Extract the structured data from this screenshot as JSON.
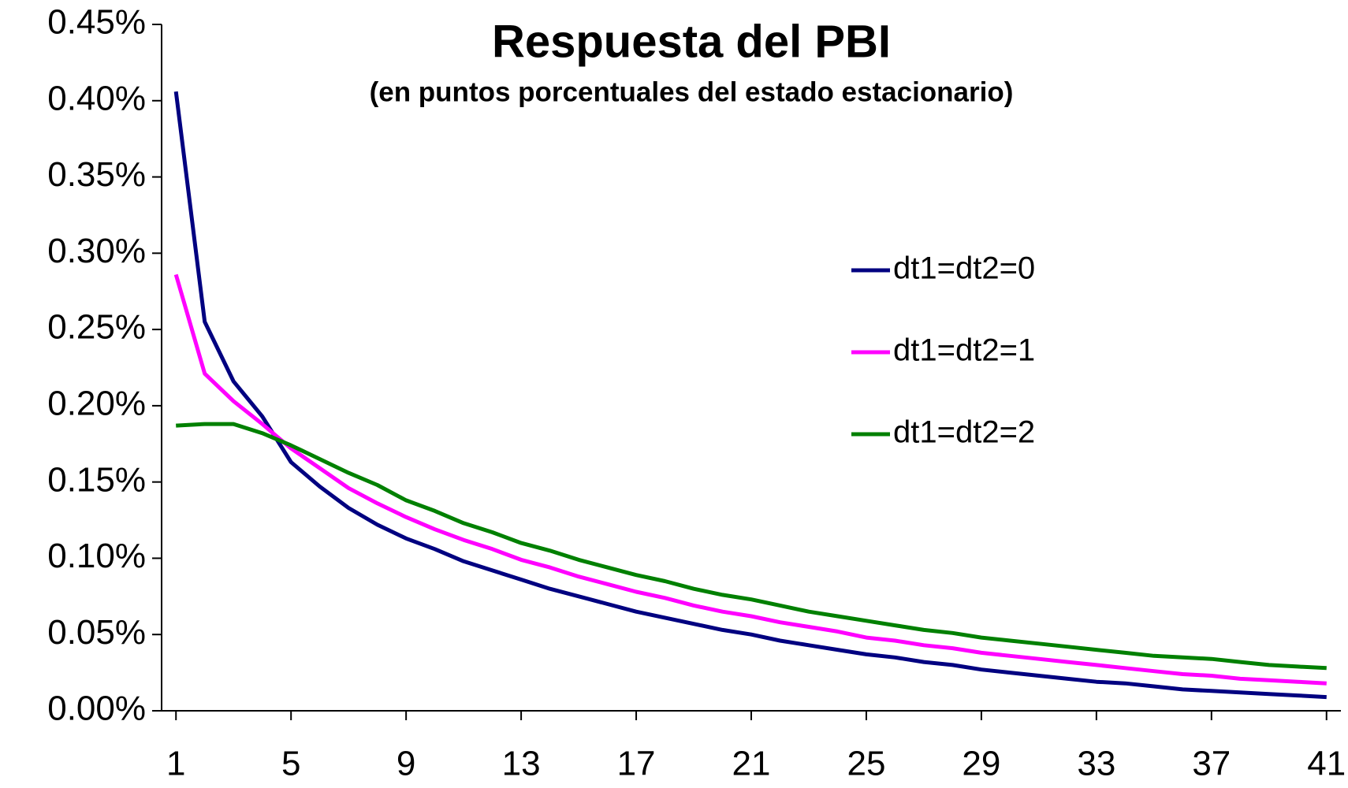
{
  "chart_data": {
    "type": "line",
    "title": "Respuesta del PBI",
    "subtitle": "(en puntos porcentuales del estado estacionario)",
    "x": [
      1,
      2,
      3,
      4,
      5,
      6,
      7,
      8,
      9,
      10,
      11,
      12,
      13,
      14,
      15,
      16,
      17,
      18,
      19,
      20,
      21,
      22,
      23,
      24,
      25,
      26,
      27,
      28,
      29,
      30,
      31,
      32,
      33,
      34,
      35,
      36,
      37,
      38,
      39,
      40,
      41
    ],
    "xlim": [
      0.5,
      41.5
    ],
    "xticks": [
      1,
      5,
      9,
      13,
      17,
      21,
      25,
      29,
      33,
      37,
      41
    ],
    "ylim": [
      0,
      0.45
    ],
    "yticks": [
      {
        "value": 0,
        "label": "0.00%"
      },
      {
        "value": 0.05,
        "label": "0.05%"
      },
      {
        "value": 0.1,
        "label": "0.10%"
      },
      {
        "value": 0.15,
        "label": "0.15%"
      },
      {
        "value": 0.2,
        "label": "0.20%"
      },
      {
        "value": 0.25,
        "label": "0.25%"
      },
      {
        "value": 0.3,
        "label": "0.30%"
      },
      {
        "value": 0.35,
        "label": "0.35%"
      },
      {
        "value": 0.4,
        "label": "0.40%"
      },
      {
        "value": 0.45,
        "label": "0.45%"
      }
    ],
    "series": [
      {
        "name": "dt1=dt2=0",
        "color": "#000080",
        "values": [
          0.406,
          0.255,
          0.216,
          0.193,
          0.163,
          0.147,
          0.133,
          0.122,
          0.113,
          0.106,
          0.098,
          0.092,
          0.086,
          0.08,
          0.075,
          0.07,
          0.065,
          0.061,
          0.057,
          0.053,
          0.05,
          0.046,
          0.043,
          0.04,
          0.037,
          0.035,
          0.032,
          0.03,
          0.027,
          0.025,
          0.023,
          0.021,
          0.019,
          0.018,
          0.016,
          0.014,
          0.013,
          0.012,
          0.011,
          0.01,
          0.009
        ]
      },
      {
        "name": "dt1=dt2=1",
        "color": "#ff00ff",
        "values": [
          0.286,
          0.221,
          0.203,
          0.188,
          0.172,
          0.159,
          0.146,
          0.136,
          0.127,
          0.119,
          0.112,
          0.106,
          0.099,
          0.094,
          0.088,
          0.083,
          0.078,
          0.074,
          0.069,
          0.065,
          0.062,
          0.058,
          0.055,
          0.052,
          0.048,
          0.046,
          0.043,
          0.041,
          0.038,
          0.036,
          0.034,
          0.032,
          0.03,
          0.028,
          0.026,
          0.024,
          0.023,
          0.021,
          0.02,
          0.019,
          0.018
        ]
      },
      {
        "name": "dt1=dt2=2",
        "color": "#008000",
        "values": [
          0.187,
          0.188,
          0.188,
          0.182,
          0.174,
          0.165,
          0.156,
          0.148,
          0.138,
          0.131,
          0.123,
          0.117,
          0.11,
          0.105,
          0.099,
          0.094,
          0.089,
          0.085,
          0.08,
          0.076,
          0.073,
          0.069,
          0.065,
          0.062,
          0.059,
          0.056,
          0.053,
          0.051,
          0.048,
          0.046,
          0.044,
          0.042,
          0.04,
          0.038,
          0.036,
          0.035,
          0.034,
          0.032,
          0.03,
          0.029,
          0.028
        ]
      }
    ]
  }
}
